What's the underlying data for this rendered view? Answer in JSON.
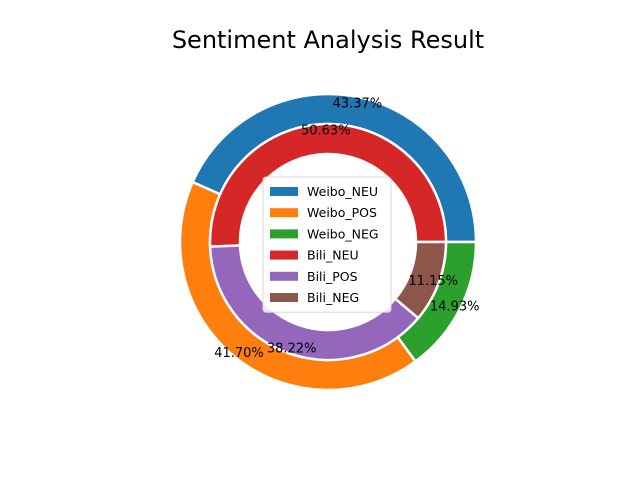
{
  "chart_data": {
    "type": "pie",
    "subtype": "nested-donut",
    "title": "Sentiment Analysis Result",
    "legend_position": "center",
    "rings": [
      {
        "name": "outer",
        "slices": [
          {
            "label": "Weibo_NEU",
            "value": 43.37,
            "pct_label": "43.37%",
            "color": "#1f77b4"
          },
          {
            "label": "Weibo_POS",
            "value": 41.7,
            "pct_label": "41.70%",
            "color": "#ff7f0e"
          },
          {
            "label": "Weibo_NEG",
            "value": 14.93,
            "pct_label": "14.93%",
            "color": "#2ca02c"
          }
        ]
      },
      {
        "name": "inner",
        "slices": [
          {
            "label": "Bili_NEU",
            "value": 50.63,
            "pct_label": "50.63%",
            "color": "#d62728"
          },
          {
            "label": "Bili_POS",
            "value": 38.22,
            "pct_label": "38.22%",
            "color": "#9467bd"
          },
          {
            "label": "Bili_NEG",
            "value": 11.15,
            "pct_label": "11.15%",
            "color": "#8c564b"
          }
        ]
      }
    ],
    "legend": [
      "Weibo_NEU",
      "Weibo_POS",
      "Weibo_NEG",
      "Bili_NEU",
      "Bili_POS",
      "Bili_NEG"
    ]
  }
}
